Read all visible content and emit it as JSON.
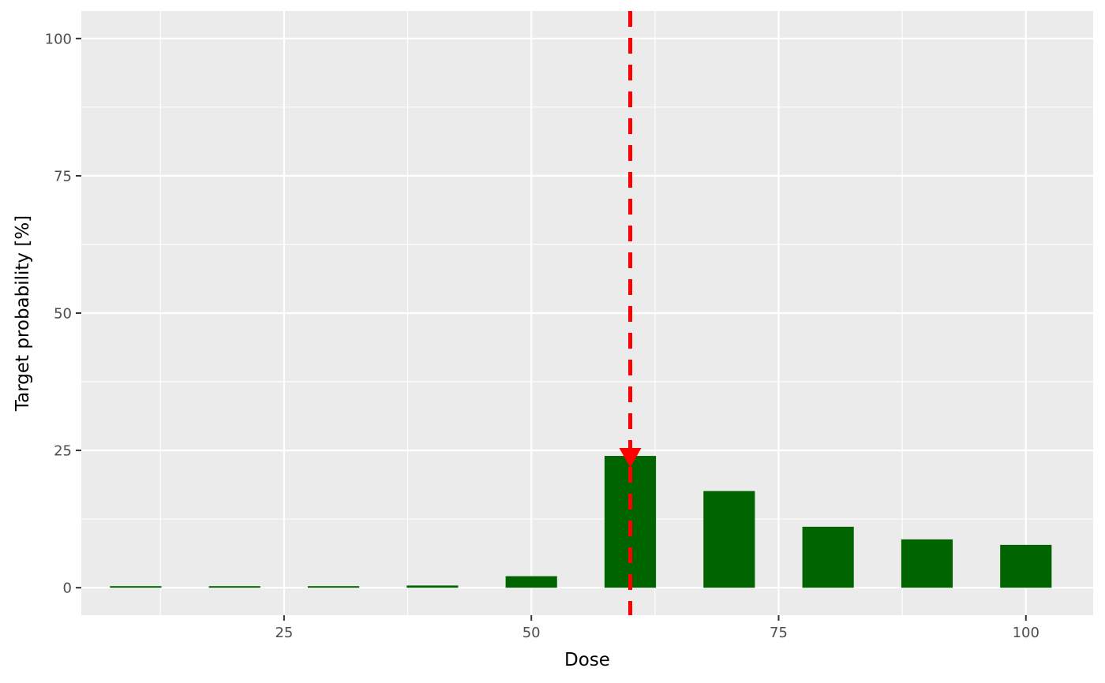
{
  "chart_data": {
    "type": "bar",
    "title": "",
    "xlabel": "Dose",
    "ylabel": "Target probability [%]",
    "x": [
      10,
      20,
      30,
      40,
      50,
      60,
      70,
      80,
      90,
      100
    ],
    "values": [
      0.2,
      0.2,
      0.2,
      0.4,
      2.1,
      24.0,
      17.6,
      11.1,
      8.8,
      7.8
    ],
    "xlim": [
      4.5,
      106.8
    ],
    "ylim": [
      -5,
      105
    ],
    "x_ticks": [
      25,
      50,
      75,
      100
    ],
    "y_ticks": [
      0,
      25,
      50,
      75,
      100
    ],
    "x_tick_labels": [
      "25",
      "50",
      "75",
      "100"
    ],
    "y_tick_labels": [
      "0",
      "25",
      "50",
      "75",
      "100"
    ],
    "grid": true,
    "marker": {
      "type": "vertical-dashed-line-with-arrow",
      "x": 60,
      "arrow_y": 24.0
    },
    "colors": {
      "bar": "#006400",
      "marker": "#ff0000",
      "panel": "#ebebeb",
      "grid": "#ffffff"
    }
  }
}
